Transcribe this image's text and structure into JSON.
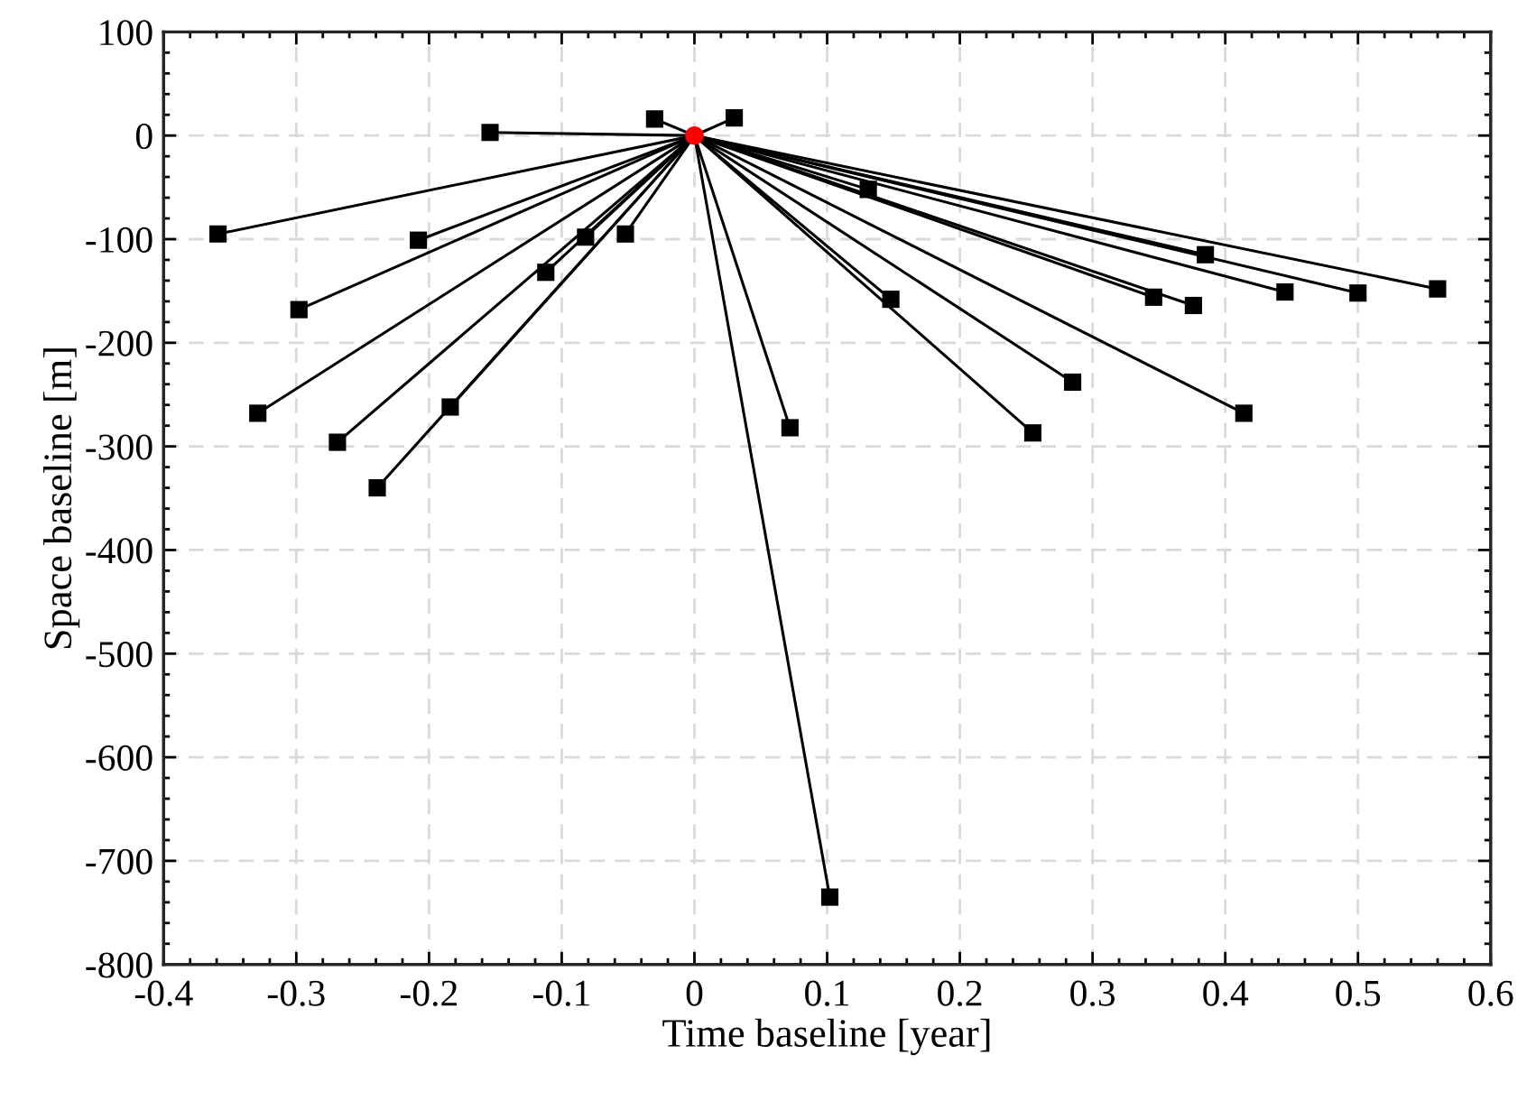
{
  "chart_data": {
    "type": "line",
    "xlabel": "Time baseline [year]",
    "ylabel": "Space baseline [m]",
    "xlim": [
      -0.4,
      0.6
    ],
    "xticks": [
      -0.4,
      -0.3,
      -0.2,
      -0.1,
      0,
      0.1,
      0.2,
      0.3,
      0.4,
      0.5,
      0.6
    ],
    "ylim": [
      -800,
      100
    ],
    "yticks": [
      -800,
      -700,
      -600,
      -500,
      -400,
      -300,
      -200,
      -100,
      0,
      100
    ],
    "grid": true,
    "legend": false,
    "series": [
      {
        "color": "#000000",
        "marker": "none",
        "x": [
          0,
          -0.359
        ],
        "values": [
          0,
          -95
        ]
      },
      {
        "color": "#000000",
        "marker": "none",
        "x": [
          0,
          -0.298
        ],
        "values": [
          0,
          -168
        ]
      },
      {
        "color": "#000000",
        "marker": "none",
        "x": [
          0,
          -0.329
        ],
        "values": [
          0,
          -268
        ]
      },
      {
        "color": "#000000",
        "marker": "none",
        "x": [
          0,
          -0.269
        ],
        "values": [
          0,
          -296
        ]
      },
      {
        "color": "#000000",
        "marker": "none",
        "x": [
          0,
          -0.239
        ],
        "values": [
          0,
          -340
        ]
      },
      {
        "color": "#000000",
        "marker": "none",
        "x": [
          0,
          -0.184
        ],
        "values": [
          0,
          -262
        ]
      },
      {
        "color": "#000000",
        "marker": "none",
        "x": [
          0,
          -0.208
        ],
        "values": [
          0,
          -101
        ]
      },
      {
        "color": "#000000",
        "marker": "none",
        "x": [
          0,
          -0.112
        ],
        "values": [
          0,
          -132
        ]
      },
      {
        "color": "#000000",
        "marker": "none",
        "x": [
          0,
          -0.082
        ],
        "values": [
          0,
          -98
        ]
      },
      {
        "color": "#000000",
        "marker": "none",
        "x": [
          0,
          -0.052
        ],
        "values": [
          0,
          -95
        ]
      },
      {
        "color": "#000000",
        "marker": "none",
        "x": [
          0,
          -0.154
        ],
        "values": [
          0,
          3
        ]
      },
      {
        "color": "#000000",
        "marker": "none",
        "x": [
          0,
          -0.03
        ],
        "values": [
          0,
          16
        ]
      },
      {
        "color": "#000000",
        "marker": "none",
        "x": [
          0,
          0.03
        ],
        "values": [
          0,
          17
        ]
      },
      {
        "color": "#000000",
        "marker": "none",
        "x": [
          0,
          0.131
        ],
        "values": [
          0,
          -52
        ]
      },
      {
        "color": "#000000",
        "marker": "none",
        "x": [
          0,
          0.148
        ],
        "values": [
          0,
          -158
        ]
      },
      {
        "color": "#000000",
        "marker": "none",
        "x": [
          0,
          0.072
        ],
        "values": [
          0,
          -282
        ]
      },
      {
        "color": "#000000",
        "marker": "none",
        "x": [
          0,
          0.102
        ],
        "values": [
          0,
          -735
        ]
      },
      {
        "color": "#000000",
        "marker": "none",
        "x": [
          0,
          0.255
        ],
        "values": [
          0,
          -287
        ]
      },
      {
        "color": "#000000",
        "marker": "none",
        "x": [
          0,
          0.285
        ],
        "values": [
          0,
          -238
        ]
      },
      {
        "color": "#000000",
        "marker": "none",
        "x": [
          0,
          0.346
        ],
        "values": [
          0,
          -156
        ]
      },
      {
        "color": "#000000",
        "marker": "none",
        "x": [
          0,
          0.376
        ],
        "values": [
          0,
          -164
        ]
      },
      {
        "color": "#000000",
        "marker": "none",
        "x": [
          0,
          0.385
        ],
        "values": [
          0,
          -115
        ]
      },
      {
        "color": "#000000",
        "marker": "none",
        "x": [
          0,
          0.414
        ],
        "values": [
          0,
          -268
        ]
      },
      {
        "color": "#000000",
        "marker": "none",
        "x": [
          0,
          0.445
        ],
        "values": [
          0,
          -151
        ]
      },
      {
        "color": "#000000",
        "marker": "none",
        "x": [
          0,
          0.5
        ],
        "values": [
          0,
          -152
        ]
      },
      {
        "color": "#000000",
        "marker": "none",
        "x": [
          0,
          0.56
        ],
        "values": [
          0,
          -148
        ]
      },
      {
        "type": "scatter",
        "color": "#000000",
        "marker": "square",
        "x": [
          -0.359,
          -0.298,
          -0.329,
          -0.269,
          -0.239,
          -0.184,
          -0.208,
          -0.112,
          -0.082,
          -0.052,
          -0.154,
          -0.03,
          0.03,
          0.131,
          0.148,
          0.072,
          0.102,
          0.255,
          0.285,
          0.346,
          0.376,
          0.385,
          0.414,
          0.445,
          0.5,
          0.56
        ],
        "values": [
          -95,
          -168,
          -268,
          -296,
          -340,
          -262,
          -101,
          -132,
          -98,
          -95,
          3,
          16,
          17,
          -52,
          -158,
          -282,
          -735,
          -287,
          -238,
          -156,
          -164,
          -115,
          -268,
          -151,
          -152,
          -148
        ]
      },
      {
        "type": "scatter",
        "color": "#ff0000",
        "marker": "circle",
        "x": [
          0
        ],
        "values": [
          0
        ]
      }
    ]
  }
}
